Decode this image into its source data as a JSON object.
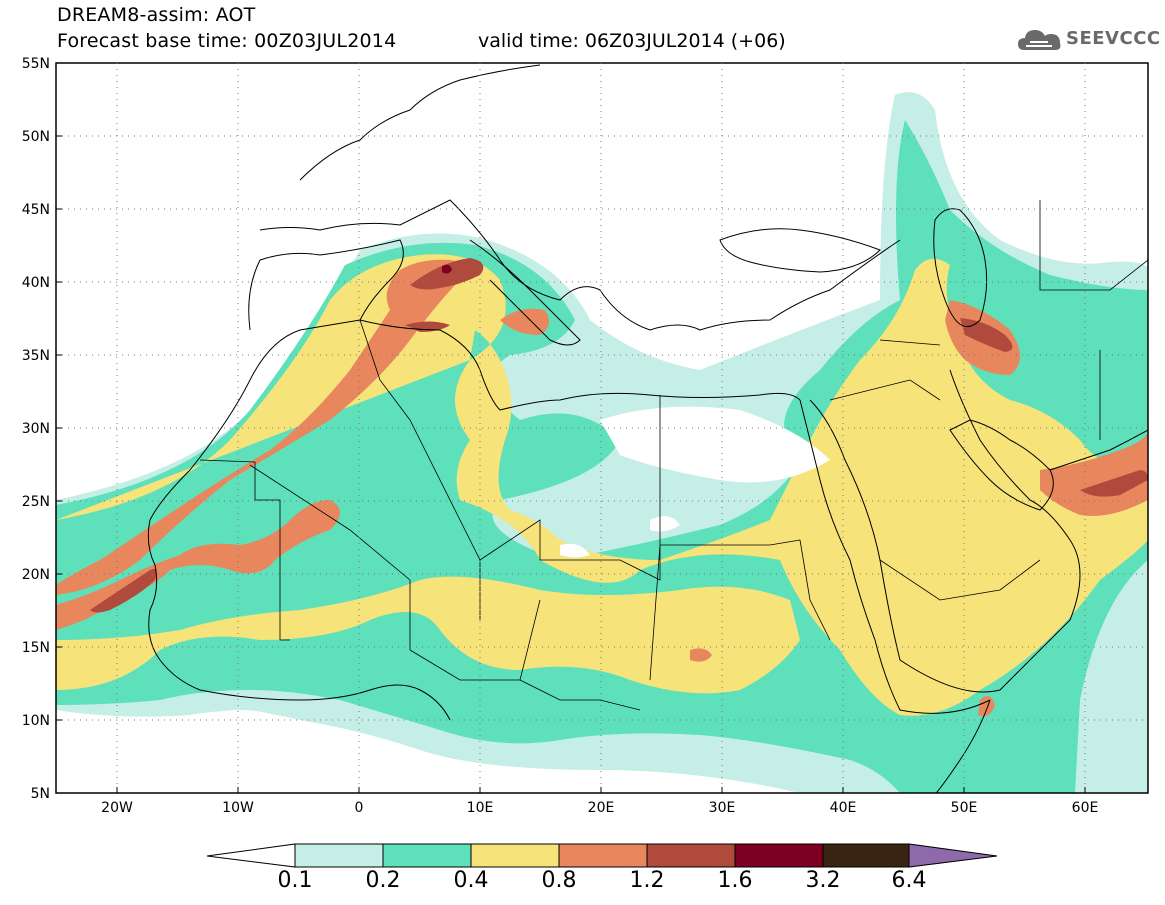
{
  "header": {
    "title": "DREAM8-assim: AOT",
    "forecast": "Forecast base time: 00Z03JUL2014",
    "valid": "valid time: 06Z03JUL2014 (+06)",
    "logo_text": "SEEVCCC"
  },
  "axes": {
    "lat_labels": [
      "55N",
      "50N",
      "45N",
      "40N",
      "35N",
      "30N",
      "25N",
      "20N",
      "15N",
      "10N",
      "5N"
    ],
    "lon_labels": [
      "20W",
      "10W",
      "0",
      "10E",
      "20E",
      "30E",
      "40E",
      "50E",
      "60E"
    ]
  },
  "legend": {
    "levels": [
      "0.1",
      "0.2",
      "0.4",
      "0.8",
      "1.2",
      "1.6",
      "3.2",
      "6.4"
    ],
    "colors": [
      "#ffffff",
      "#c4eee6",
      "#5ee0bb",
      "#f6e37a",
      "#e8875e",
      "#b04a3c",
      "#7d0022",
      "#3a2512",
      "#8e69ab"
    ]
  }
}
